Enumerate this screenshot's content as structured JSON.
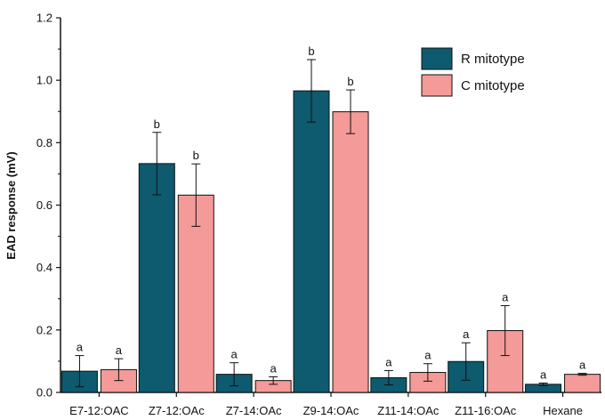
{
  "chart_data": {
    "type": "bar",
    "ylabel": "EAD response (mV)",
    "xlabel": "",
    "ylim": [
      0,
      1.2
    ],
    "yticks": [
      0.0,
      0.2,
      0.4,
      0.6,
      0.8,
      1.0,
      1.2
    ],
    "ytick_labels": [
      "0.0",
      "0.2",
      "0.4",
      "0.6",
      "0.8",
      "1.0",
      "1.2"
    ],
    "categories": [
      "E7-12:OAC",
      "Z7-12:OAc",
      "Z7-14:OAc",
      "Z9-14:OAc",
      "Z11-14:OAc",
      "Z11-16:OAc",
      "Hexane"
    ],
    "legend_position": "top-right",
    "grid": false,
    "series": [
      {
        "name": "R mitotype",
        "color": "#0e5a6e",
        "values": [
          0.068,
          0.733,
          0.058,
          0.966,
          0.047,
          0.099,
          0.026
        ],
        "errors": [
          0.05,
          0.1,
          0.037,
          0.1,
          0.023,
          0.06,
          0.004
        ],
        "sig": [
          "a",
          "b",
          "a",
          "b",
          "a",
          "a",
          "a"
        ]
      },
      {
        "name": "C mitotype",
        "color": "#f49a98",
        "values": [
          0.073,
          0.632,
          0.038,
          0.899,
          0.064,
          0.198,
          0.058
        ],
        "errors": [
          0.035,
          0.1,
          0.012,
          0.07,
          0.028,
          0.08,
          0.003
        ],
        "sig": [
          "a",
          "b",
          "a",
          "b",
          "a",
          "a",
          "a"
        ]
      }
    ]
  }
}
